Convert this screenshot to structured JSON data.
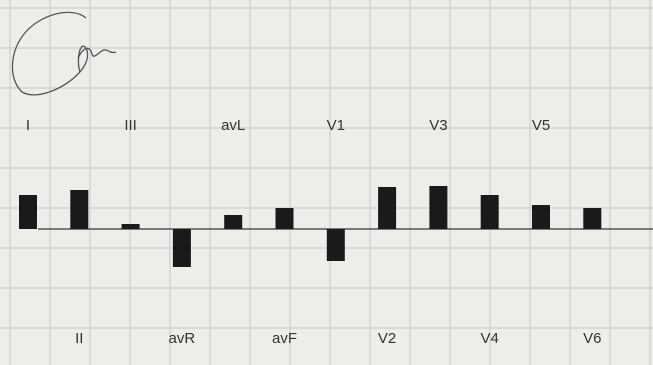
{
  "chart_data": {
    "type": "bar",
    "categories": [
      "I",
      "II",
      "III",
      "avR",
      "avL",
      "avF",
      "V1",
      "V2",
      "V3",
      "V4",
      "V5",
      "V6"
    ],
    "values": [
      34,
      39,
      5,
      -38,
      14,
      21,
      -32,
      42,
      43,
      34,
      24,
      21
    ],
    "title": "",
    "xlabel": "",
    "ylabel": "",
    "ylim": [
      -45,
      50
    ],
    "grid": true,
    "legend": "none",
    "bar_color": "#1a1a1a",
    "baseline_color": "#555555",
    "grid_color": "#c8c8c8",
    "paper_color": "#eeedea"
  }
}
